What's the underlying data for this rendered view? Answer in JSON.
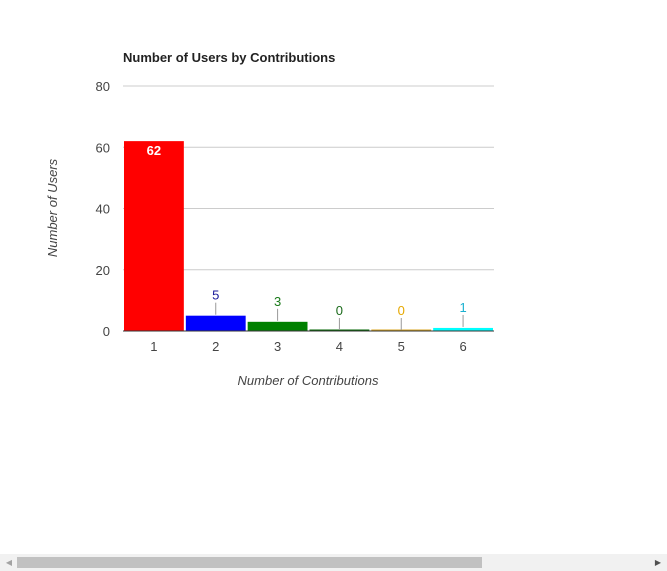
{
  "chart_data": {
    "type": "bar",
    "title": "Number of Users by Contributions",
    "xlabel": "Number of Contributions",
    "ylabel": "Number of Users",
    "categories": [
      "1",
      "2",
      "3",
      "4",
      "5",
      "6"
    ],
    "values": [
      62,
      5,
      3,
      0,
      0,
      1
    ],
    "colors": [
      "#ff0000",
      "#0000ff",
      "#008000",
      "#006400",
      "#daa520",
      "#00ffff"
    ],
    "label_colors": [
      "#ffffff",
      "#1a1a9a",
      "#1a7a1a",
      "#1a6a1a",
      "#e6a800",
      "#1ab0d0"
    ],
    "ylim": [
      0,
      80
    ],
    "yticks": [
      0,
      20,
      40,
      60,
      80
    ],
    "grid": true,
    "legend": "none"
  },
  "scrollbar": {
    "left_arrow": "◀",
    "right_arrow": "▶"
  }
}
